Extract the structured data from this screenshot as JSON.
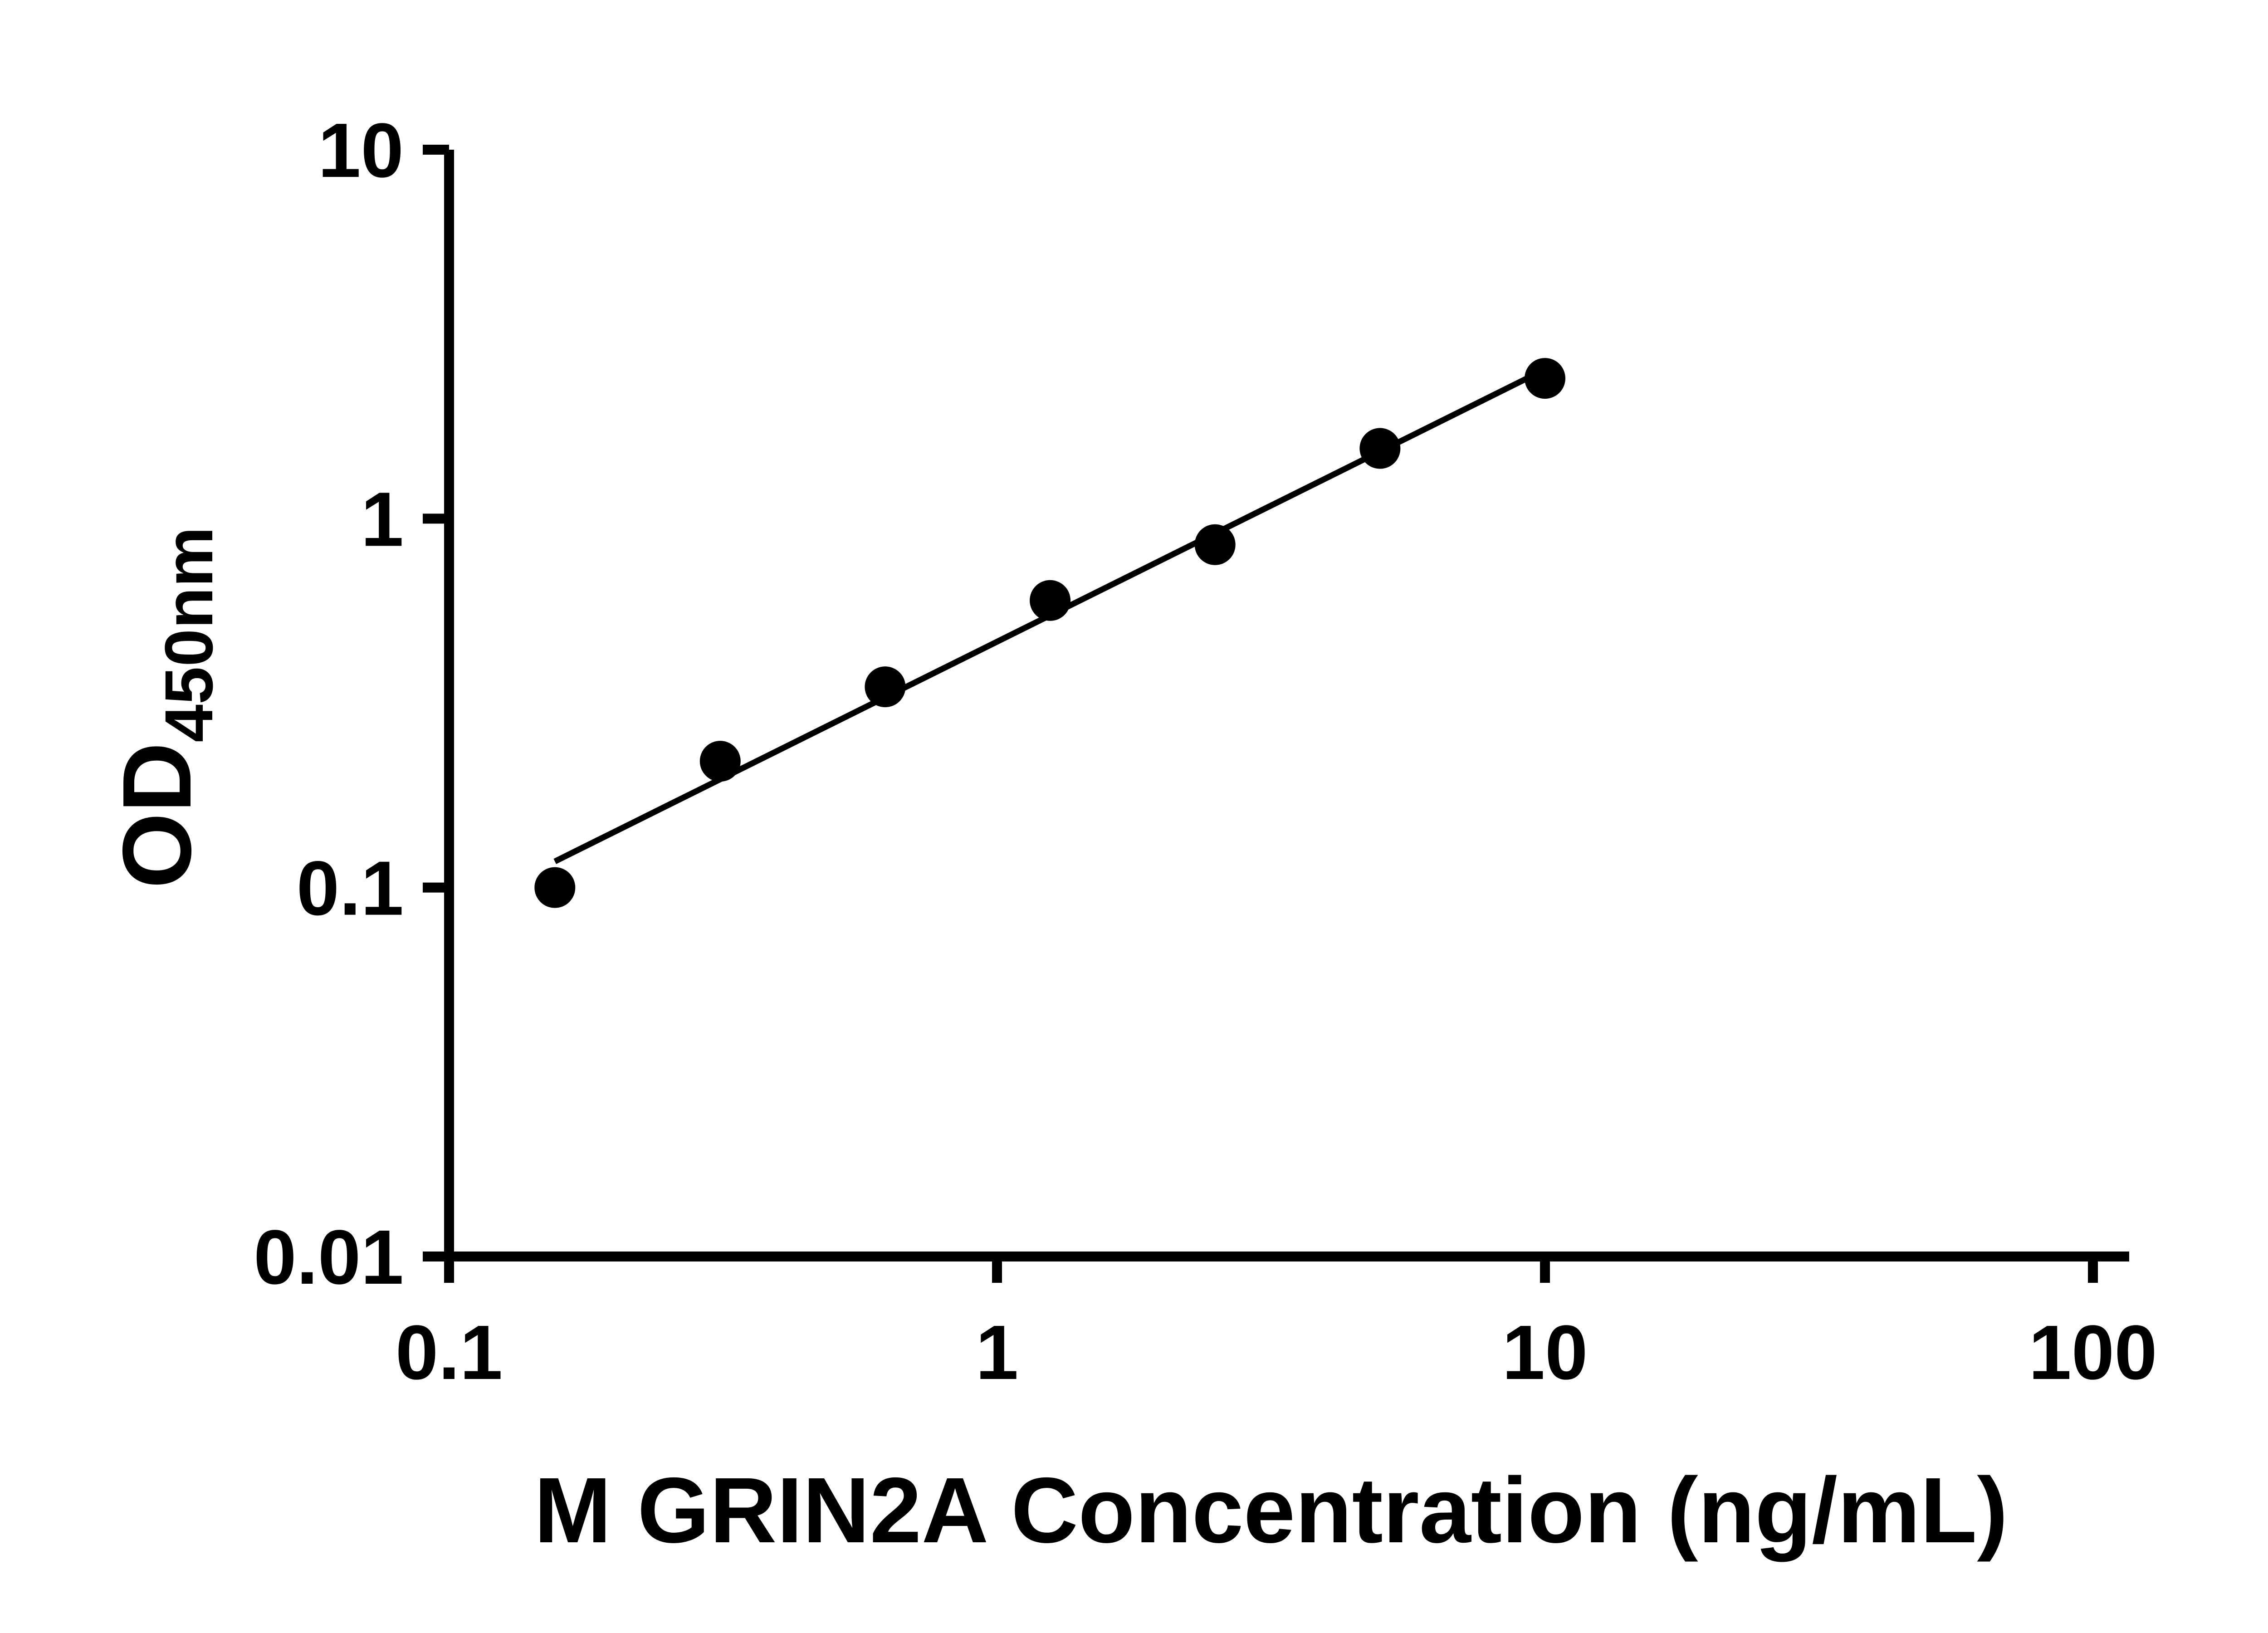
{
  "chart_data": {
    "type": "scatter",
    "title": "",
    "xlabel": "M GRIN2A Concentration (ng/mL)",
    "ylabel": "OD450nm",
    "ylabel_main": "OD",
    "ylabel_sub": "450nm",
    "x_scale": "log",
    "y_scale": "log",
    "xlim": [
      0.1,
      100
    ],
    "ylim": [
      0.01,
      10
    ],
    "x_ticks": [
      0.1,
      1,
      10,
      100
    ],
    "x_tick_labels": [
      "0.1",
      "1",
      "10",
      "100"
    ],
    "y_ticks": [
      0.01,
      0.1,
      1,
      10
    ],
    "y_tick_labels": [
      "0.01",
      "0.1",
      "1",
      "10"
    ],
    "grid": false,
    "legend": "none",
    "marker_color": "#000000",
    "line_color": "#000000",
    "axis_color": "#000000",
    "points": [
      {
        "x": 0.156,
        "y": 0.1
      },
      {
        "x": 0.3125,
        "y": 0.22
      },
      {
        "x": 0.625,
        "y": 0.35
      },
      {
        "x": 1.25,
        "y": 0.6
      },
      {
        "x": 2.5,
        "y": 0.85
      },
      {
        "x": 5,
        "y": 1.55
      },
      {
        "x": 10,
        "y": 2.4
      }
    ],
    "trendline": {
      "type": "linear-loglog",
      "draw_from_x": 0.156,
      "draw_to_x": 10
    }
  }
}
